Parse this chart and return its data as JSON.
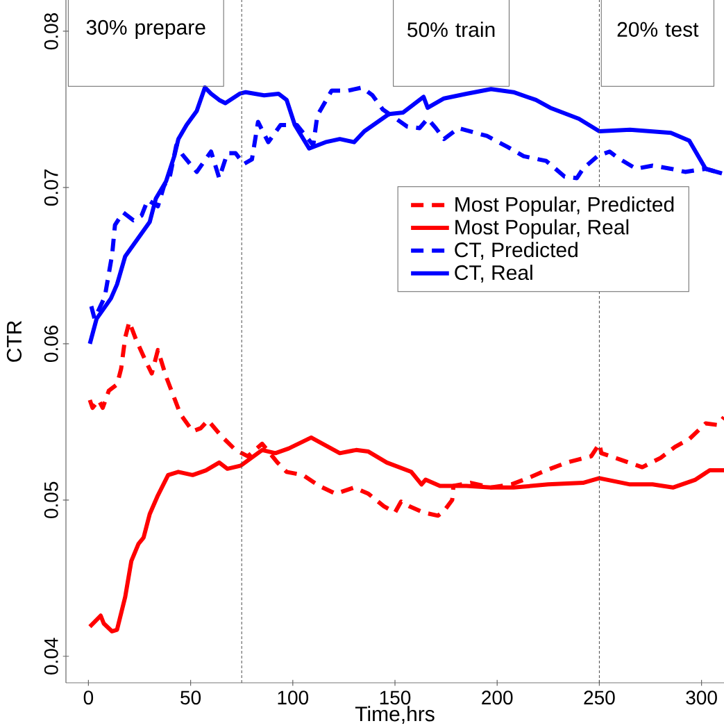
{
  "chart_data": {
    "type": "line",
    "xlabel": "Time,hrs",
    "ylabel": "CTR",
    "xlim": [
      -11,
      311
    ],
    "ylim": [
      0.0383,
      0.082
    ],
    "xticks": [
      0,
      50,
      100,
      150,
      200,
      250,
      300
    ],
    "yticks": [
      0.04,
      0.05,
      0.06,
      0.07,
      0.08
    ],
    "legend": "right",
    "marker": "none",
    "ref_lines": [
      {
        "axis": "x",
        "value": 75,
        "line_style": "dashed"
      },
      {
        "axis": "x",
        "value": 250,
        "line_style": "dashed"
      }
    ],
    "annotations": [
      "30% prepare",
      "50% train",
      "20% test"
    ],
    "series": [
      {
        "name": "Most Popular, Predicted",
        "color": "#ff0000",
        "line_style": "dashed",
        "x": [
          0.7,
          2,
          5,
          7,
          10,
          14,
          16,
          18,
          20,
          23.5,
          28,
          31,
          34,
          38,
          45,
          51,
          55,
          58.5,
          65,
          72,
          78,
          85,
          92.5,
          97,
          105,
          113,
          121,
          130,
          137,
          144.6,
          150,
          153,
          157,
          164,
          171,
          174,
          178,
          178.6,
          187,
          197,
          207,
          215,
          224,
          234,
          246,
          250,
          251,
          260,
          271,
          280,
          287,
          294,
          302,
          308,
          311
        ],
        "values": [
          0.0564,
          0.0559,
          0.0564,
          0.0559,
          0.057,
          0.0574,
          0.0584,
          0.0604,
          0.0614,
          0.0602,
          0.0589,
          0.0581,
          0.0596,
          0.0579,
          0.0555,
          0.0544,
          0.0546,
          0.0551,
          0.0541,
          0.0532,
          0.0528,
          0.0536,
          0.0524,
          0.0518,
          0.0516,
          0.0509,
          0.0504,
          0.0508,
          0.0504,
          0.0496,
          0.0492,
          0.0499,
          0.0496,
          0.0492,
          0.049,
          0.0493,
          0.05,
          0.0509,
          0.0511,
          0.0508,
          0.051,
          0.0514,
          0.0519,
          0.0524,
          0.0528,
          0.0536,
          0.053,
          0.0526,
          0.0521,
          0.0527,
          0.0534,
          0.0539,
          0.0549,
          0.0548,
          0.0553
        ]
      },
      {
        "name": "Most Popular, Real",
        "color": "#ff0000",
        "line_style": "solid",
        "x": [
          0.7,
          6,
          7.5,
          11.5,
          14,
          18,
          21,
          24.5,
          27,
          30,
          34,
          39,
          44,
          51,
          57.5,
          64,
          68,
          74.5,
          85,
          91.5,
          98,
          109,
          116,
          123,
          131,
          137,
          146,
          158,
          163,
          165,
          172,
          185,
          197,
          208,
          225,
          242,
          250,
          265,
          276,
          286,
          297,
          304,
          311
        ],
        "values": [
          0.0419,
          0.0426,
          0.0421,
          0.0416,
          0.0417,
          0.0438,
          0.0461,
          0.0472,
          0.0476,
          0.0491,
          0.0503,
          0.0516,
          0.0518,
          0.0516,
          0.0519,
          0.0524,
          0.052,
          0.0522,
          0.0532,
          0.053,
          0.0533,
          0.054,
          0.0535,
          0.053,
          0.0532,
          0.0531,
          0.0524,
          0.0518,
          0.051,
          0.0513,
          0.0509,
          0.0509,
          0.0508,
          0.0508,
          0.051,
          0.0511,
          0.0514,
          0.051,
          0.051,
          0.0508,
          0.0513,
          0.0519,
          0.0519
        ]
      },
      {
        "name": "CT, Predicted",
        "color": "#0000ff",
        "line_style": "dashed",
        "x": [
          1.4,
          3,
          8,
          11.6,
          13,
          17,
          22,
          26,
          29,
          34,
          37,
          40,
          43,
          46,
          53,
          60,
          64,
          68,
          72,
          76,
          80,
          83,
          88,
          94,
          102,
          110,
          112,
          119,
          127,
          134,
          139,
          144,
          156,
          162,
          166,
          170,
          174,
          181,
          195,
          205,
          213,
          224,
          233,
          239,
          242,
          249,
          255,
          259,
          268,
          276,
          285,
          292,
          302,
          310
        ],
        "values": [
          0.0624,
          0.0616,
          0.063,
          0.0657,
          0.0676,
          0.0684,
          0.0679,
          0.0682,
          0.0692,
          0.0688,
          0.0701,
          0.0708,
          0.0727,
          0.0721,
          0.071,
          0.0723,
          0.0706,
          0.0722,
          0.0722,
          0.0715,
          0.0718,
          0.0742,
          0.0729,
          0.074,
          0.074,
          0.0727,
          0.0746,
          0.0762,
          0.0762,
          0.0764,
          0.0759,
          0.075,
          0.0739,
          0.0738,
          0.0744,
          0.0738,
          0.0731,
          0.0738,
          0.0733,
          0.0726,
          0.072,
          0.0717,
          0.0707,
          0.0706,
          0.0712,
          0.072,
          0.0723,
          0.0719,
          0.0712,
          0.0714,
          0.0712,
          0.071,
          0.0712,
          0.0709
        ]
      },
      {
        "name": "CT, Real",
        "color": "#0000ff",
        "line_style": "solid",
        "x": [
          0.7,
          4,
          11,
          14,
          18,
          24,
          30,
          33,
          38,
          42,
          44,
          48,
          53,
          57,
          60,
          64,
          67,
          74,
          77,
          86,
          93,
          97,
          101,
          108,
          116,
          123,
          130,
          135,
          147,
          154,
          164,
          166,
          174,
          185,
          197,
          208,
          219,
          226,
          240,
          250,
          265,
          285,
          294,
          302,
          310
        ],
        "values": [
          0.06,
          0.0616,
          0.0629,
          0.0638,
          0.0656,
          0.0667,
          0.0678,
          0.0693,
          0.0704,
          0.072,
          0.0731,
          0.074,
          0.0749,
          0.0764,
          0.076,
          0.0756,
          0.0754,
          0.076,
          0.0761,
          0.0759,
          0.076,
          0.0756,
          0.074,
          0.0725,
          0.0729,
          0.0731,
          0.0729,
          0.0736,
          0.0747,
          0.0748,
          0.0758,
          0.0751,
          0.0757,
          0.076,
          0.0763,
          0.0761,
          0.0756,
          0.0751,
          0.0744,
          0.0736,
          0.0737,
          0.0735,
          0.073,
          0.0712,
          0.0709
        ]
      }
    ]
  }
}
